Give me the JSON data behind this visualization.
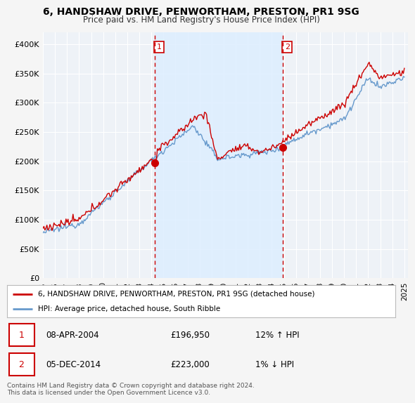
{
  "title": "6, HANDSHAW DRIVE, PENWORTHAM, PRESTON, PR1 9SG",
  "subtitle": "Price paid vs. HM Land Registry's House Price Index (HPI)",
  "ylabel_ticks": [
    "£0",
    "£50K",
    "£100K",
    "£150K",
    "£200K",
    "£250K",
    "£300K",
    "£350K",
    "£400K"
  ],
  "ytick_values": [
    0,
    50000,
    100000,
    150000,
    200000,
    250000,
    300000,
    350000,
    400000
  ],
  "ylim": [
    0,
    420000
  ],
  "xlim_start": 1995.0,
  "xlim_end": 2025.3,
  "line_color_red": "#cc0000",
  "line_color_blue": "#6699cc",
  "transaction1": {
    "year": 2004.27,
    "price": 196950,
    "label": "1"
  },
  "transaction2": {
    "year": 2014.92,
    "price": 223000,
    "label": "2"
  },
  "vline_color": "#cc0000",
  "shade_color": "#ddeeff",
  "legend_label_red": "6, HANDSHAW DRIVE, PENWORTHAM, PRESTON, PR1 9SG (detached house)",
  "legend_label_blue": "HPI: Average price, detached house, South Ribble",
  "footnote": "Contains HM Land Registry data © Crown copyright and database right 2024.\nThis data is licensed under the Open Government Licence v3.0.",
  "background_color": "#f5f5f5",
  "plot_bg_color": "#eef2f7",
  "grid_color": "#ffffff",
  "xticks": [
    1995,
    1996,
    1997,
    1998,
    1999,
    2000,
    2001,
    2002,
    2003,
    2004,
    2005,
    2006,
    2007,
    2008,
    2009,
    2010,
    2011,
    2012,
    2013,
    2014,
    2015,
    2016,
    2017,
    2018,
    2019,
    2020,
    2021,
    2022,
    2023,
    2024,
    2025
  ]
}
